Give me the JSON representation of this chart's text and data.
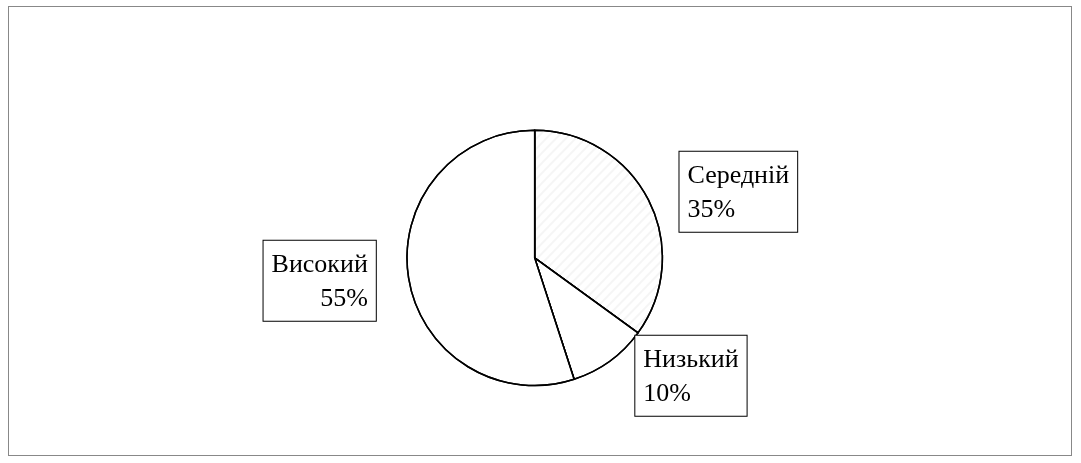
{
  "chart_data": {
    "type": "pie",
    "categories": [
      "Середній",
      "Низький",
      "Високий"
    ],
    "values": [
      35,
      10,
      55
    ],
    "value_labels": [
      "35%",
      "10%",
      "55%"
    ],
    "colors": [
      "#ffffff",
      "#ffffff",
      "#ffffff"
    ],
    "legend": false
  }
}
